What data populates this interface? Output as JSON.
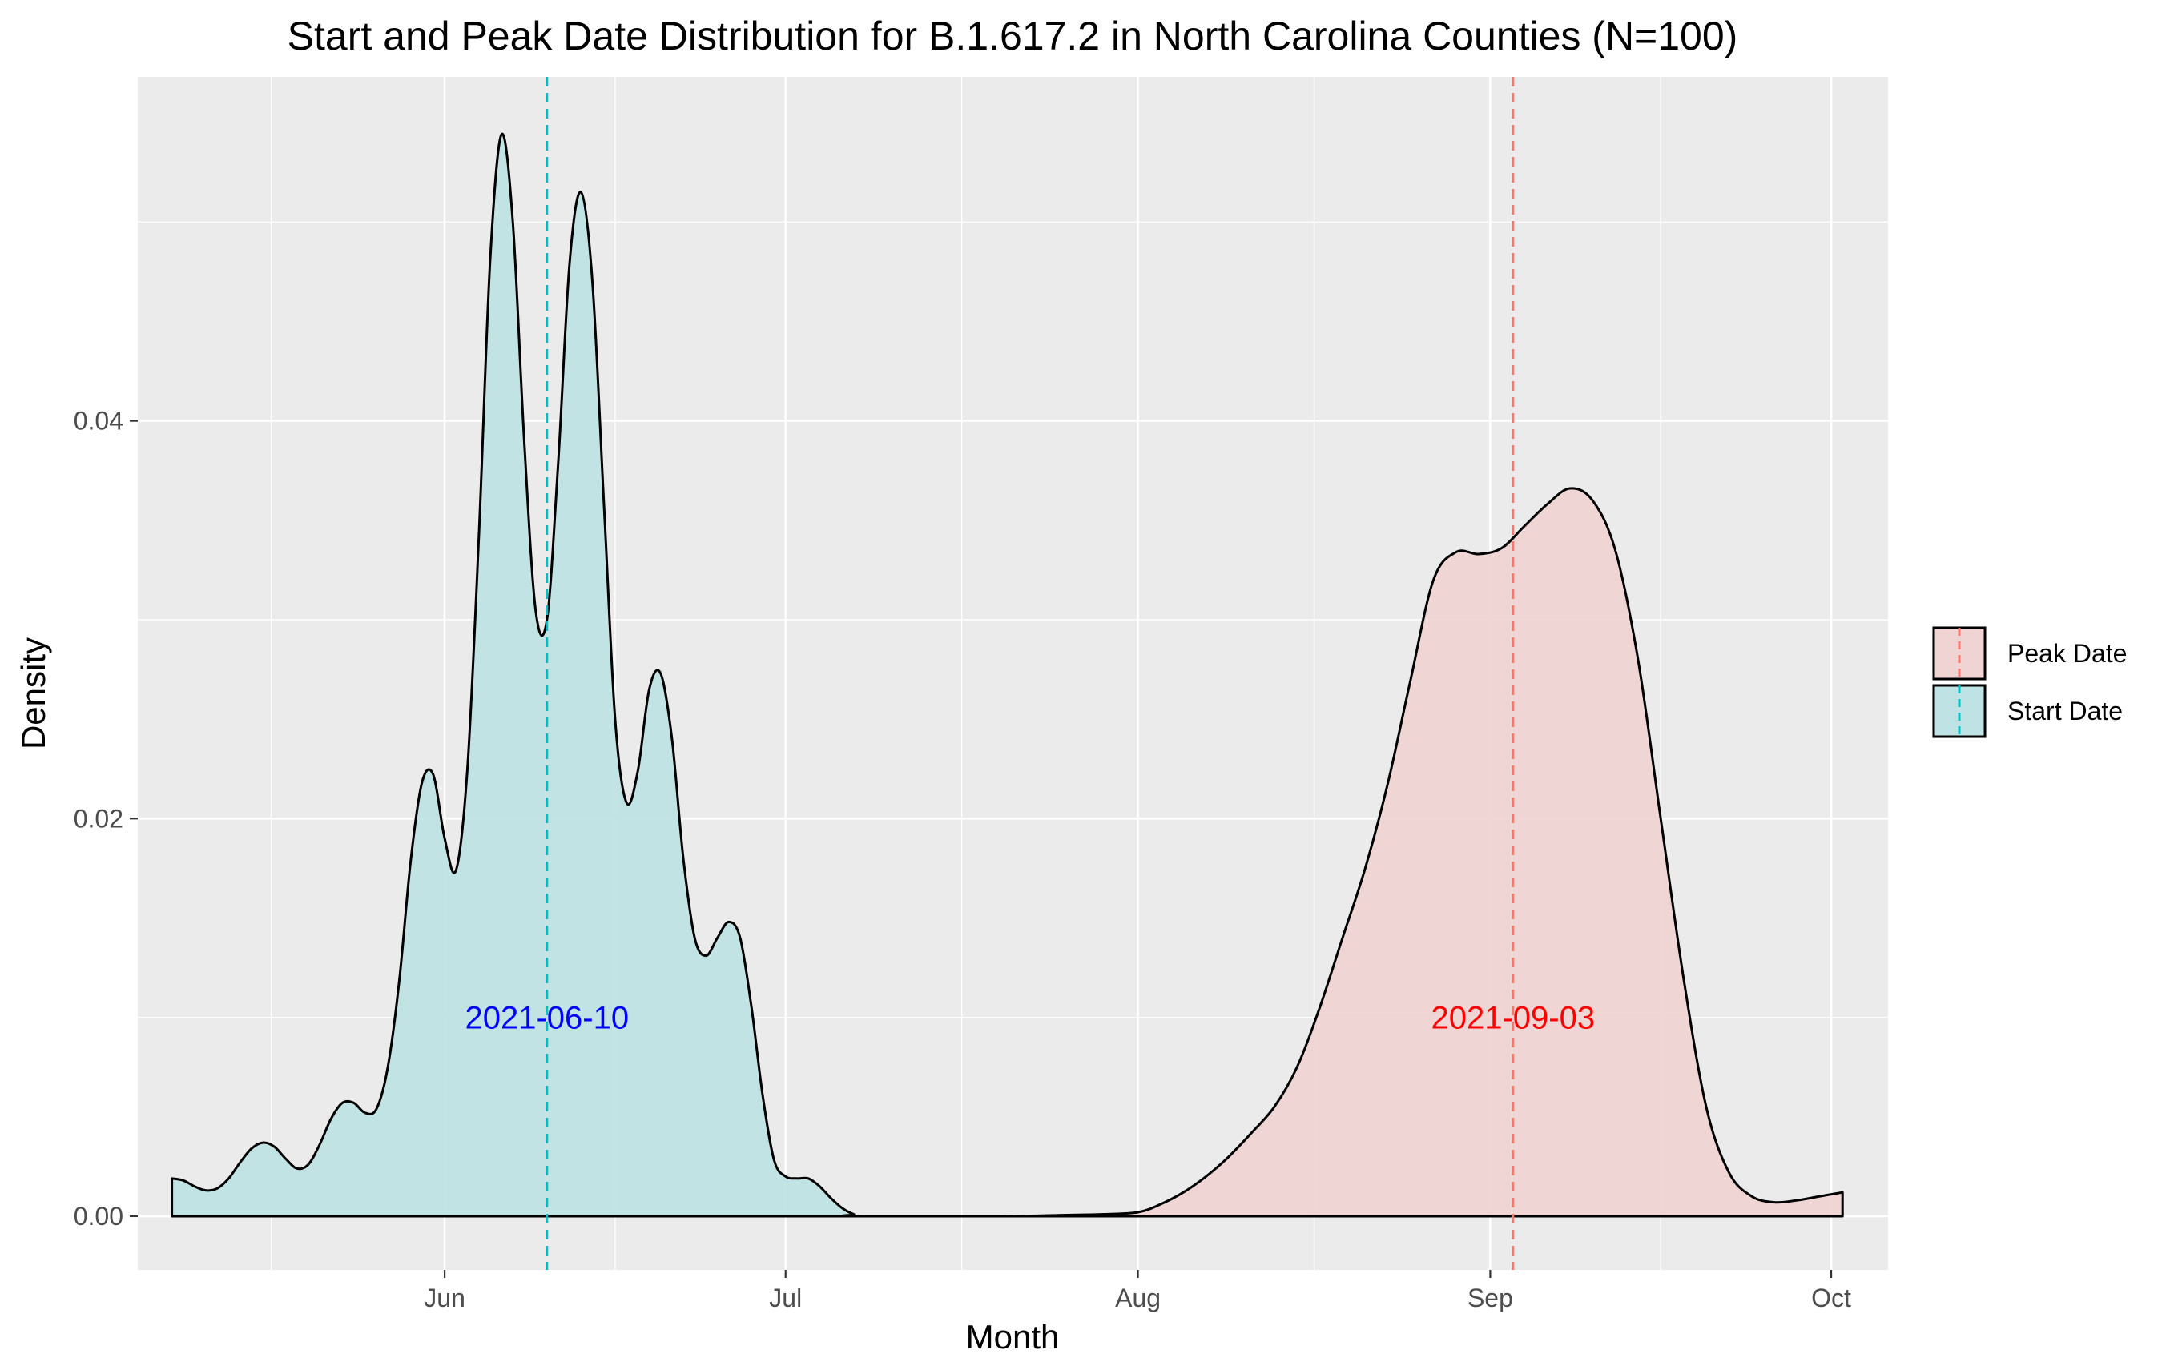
{
  "chart_data": {
    "type": "area",
    "title": "Start and Peak Date Distribution for B.1.617.2 in North Carolina Counties (N=100)",
    "xlabel": "Month",
    "ylabel": "Density",
    "x_scale": "date",
    "xlim": [
      "2021-05-05",
      "2021-10-06"
    ],
    "ylim": [
      -0.0027,
      0.0573
    ],
    "x_ticks": [
      {
        "date": "2021-06-01",
        "label": "Jun"
      },
      {
        "date": "2021-07-01",
        "label": "Jul"
      },
      {
        "date": "2021-08-01",
        "label": "Aug"
      },
      {
        "date": "2021-09-01",
        "label": "Sep"
      },
      {
        "date": "2021-10-01",
        "label": "Oct"
      }
    ],
    "y_ticks": [
      {
        "value": 0.0,
        "label": "0.00"
      },
      {
        "value": 0.02,
        "label": "0.02"
      },
      {
        "value": 0.04,
        "label": "0.04"
      }
    ],
    "grid": true,
    "panel_background": "#ebebeb",
    "legend_position": "right",
    "series": [
      {
        "name": "Start Date",
        "fill": "#bfe3e4",
        "line_color": "#00bfc4",
        "median": "2021-06-10",
        "median_label": "2021-06-10",
        "median_label_color": "#0000ff",
        "points": [
          [
            "2021-05-08",
            0.0019
          ],
          [
            "2021-05-09",
            0.0018
          ],
          [
            "2021-05-10",
            0.0015
          ],
          [
            "2021-05-11",
            0.0013
          ],
          [
            "2021-05-12",
            0.0014
          ],
          [
            "2021-05-13",
            0.0019
          ],
          [
            "2021-05-14",
            0.0027
          ],
          [
            "2021-05-15",
            0.0034
          ],
          [
            "2021-05-16",
            0.0037
          ],
          [
            "2021-05-17",
            0.0035
          ],
          [
            "2021-05-18",
            0.0029
          ],
          [
            "2021-05-19",
            0.0024
          ],
          [
            "2021-05-20",
            0.0026
          ],
          [
            "2021-05-21",
            0.0036
          ],
          [
            "2021-05-22",
            0.0049
          ],
          [
            "2021-05-23",
            0.0057
          ],
          [
            "2021-05-24",
            0.0057
          ],
          [
            "2021-05-25",
            0.0052
          ],
          [
            "2021-05-26",
            0.0054
          ],
          [
            "2021-05-27",
            0.0075
          ],
          [
            "2021-05-28",
            0.0118
          ],
          [
            "2021-05-29",
            0.0178
          ],
          [
            "2021-05-30",
            0.0218
          ],
          [
            "2021-05-31",
            0.0222
          ],
          [
            "2021-06-01",
            0.019
          ],
          [
            "2021-06-02",
            0.0174
          ],
          [
            "2021-06-03",
            0.0225
          ],
          [
            "2021-06-04",
            0.034
          ],
          [
            "2021-06-05",
            0.048
          ],
          [
            "2021-06-06",
            0.0544
          ],
          [
            "2021-06-07",
            0.05
          ],
          [
            "2021-06-08",
            0.039
          ],
          [
            "2021-06-09",
            0.0305
          ],
          [
            "2021-06-10",
            0.03
          ],
          [
            "2021-06-11",
            0.038
          ],
          [
            "2021-06-12",
            0.048
          ],
          [
            "2021-06-13",
            0.0515
          ],
          [
            "2021-06-14",
            0.047
          ],
          [
            "2021-06-15",
            0.036
          ],
          [
            "2021-06-16",
            0.025
          ],
          [
            "2021-06-17",
            0.0208
          ],
          [
            "2021-06-18",
            0.0224
          ],
          [
            "2021-06-19",
            0.0265
          ],
          [
            "2021-06-20",
            0.0273
          ],
          [
            "2021-06-21",
            0.024
          ],
          [
            "2021-06-22",
            0.018
          ],
          [
            "2021-06-23",
            0.014
          ],
          [
            "2021-06-24",
            0.0131
          ],
          [
            "2021-06-25",
            0.014
          ],
          [
            "2021-06-26",
            0.0148
          ],
          [
            "2021-06-27",
            0.014
          ],
          [
            "2021-06-28",
            0.0105
          ],
          [
            "2021-06-29",
            0.006
          ],
          [
            "2021-06-30",
            0.0028
          ],
          [
            "2021-07-01",
            0.002
          ],
          [
            "2021-07-02",
            0.0019
          ],
          [
            "2021-07-03",
            0.0019
          ],
          [
            "2021-07-04",
            0.0015
          ],
          [
            "2021-07-05",
            0.0009
          ],
          [
            "2021-07-06",
            0.0004
          ],
          [
            "2021-07-07",
            0.0001
          ],
          [
            "2021-07-08",
            0.0
          ],
          [
            "2021-07-31",
            0.0
          ]
        ]
      },
      {
        "name": "Peak Date",
        "fill": "#f0d4d4",
        "line_color": "#f8766d",
        "median": "2021-09-03",
        "median_label": "2021-09-03",
        "median_label_color": "#ff0000",
        "points": [
          [
            "2021-07-06",
            0.0
          ],
          [
            "2021-07-20",
            0.0
          ],
          [
            "2021-07-25",
            5e-05
          ],
          [
            "2021-07-29",
            0.0001
          ],
          [
            "2021-08-01",
            0.0002
          ],
          [
            "2021-08-03",
            0.0006
          ],
          [
            "2021-08-05",
            0.0012
          ],
          [
            "2021-08-07",
            0.002
          ],
          [
            "2021-08-09",
            0.003
          ],
          [
            "2021-08-11",
            0.0042
          ],
          [
            "2021-08-13",
            0.0055
          ],
          [
            "2021-08-15",
            0.0075
          ],
          [
            "2021-08-17",
            0.0105
          ],
          [
            "2021-08-19",
            0.014
          ],
          [
            "2021-08-21",
            0.0175
          ],
          [
            "2021-08-23",
            0.0218
          ],
          [
            "2021-08-25",
            0.027
          ],
          [
            "2021-08-27",
            0.032
          ],
          [
            "2021-08-29",
            0.0334
          ],
          [
            "2021-08-31",
            0.0333
          ],
          [
            "2021-09-02",
            0.0336
          ],
          [
            "2021-09-04",
            0.0347
          ],
          [
            "2021-09-06",
            0.0358
          ],
          [
            "2021-09-08",
            0.0366
          ],
          [
            "2021-09-10",
            0.036
          ],
          [
            "2021-09-12",
            0.0335
          ],
          [
            "2021-09-14",
            0.028
          ],
          [
            "2021-09-16",
            0.02
          ],
          [
            "2021-09-18",
            0.012
          ],
          [
            "2021-09-20",
            0.0055
          ],
          [
            "2021-09-22",
            0.0022
          ],
          [
            "2021-09-24",
            0.001
          ],
          [
            "2021-09-26",
            0.0007
          ],
          [
            "2021-09-28",
            0.0008
          ],
          [
            "2021-09-30",
            0.001
          ],
          [
            "2021-10-02",
            0.0012
          ]
        ]
      }
    ],
    "legend": [
      {
        "label": "Peak Date",
        "fill": "#f0d4d4",
        "line_color": "#f8766d"
      },
      {
        "label": "Start Date",
        "fill": "#bfe3e4",
        "line_color": "#00bfc4"
      }
    ]
  }
}
